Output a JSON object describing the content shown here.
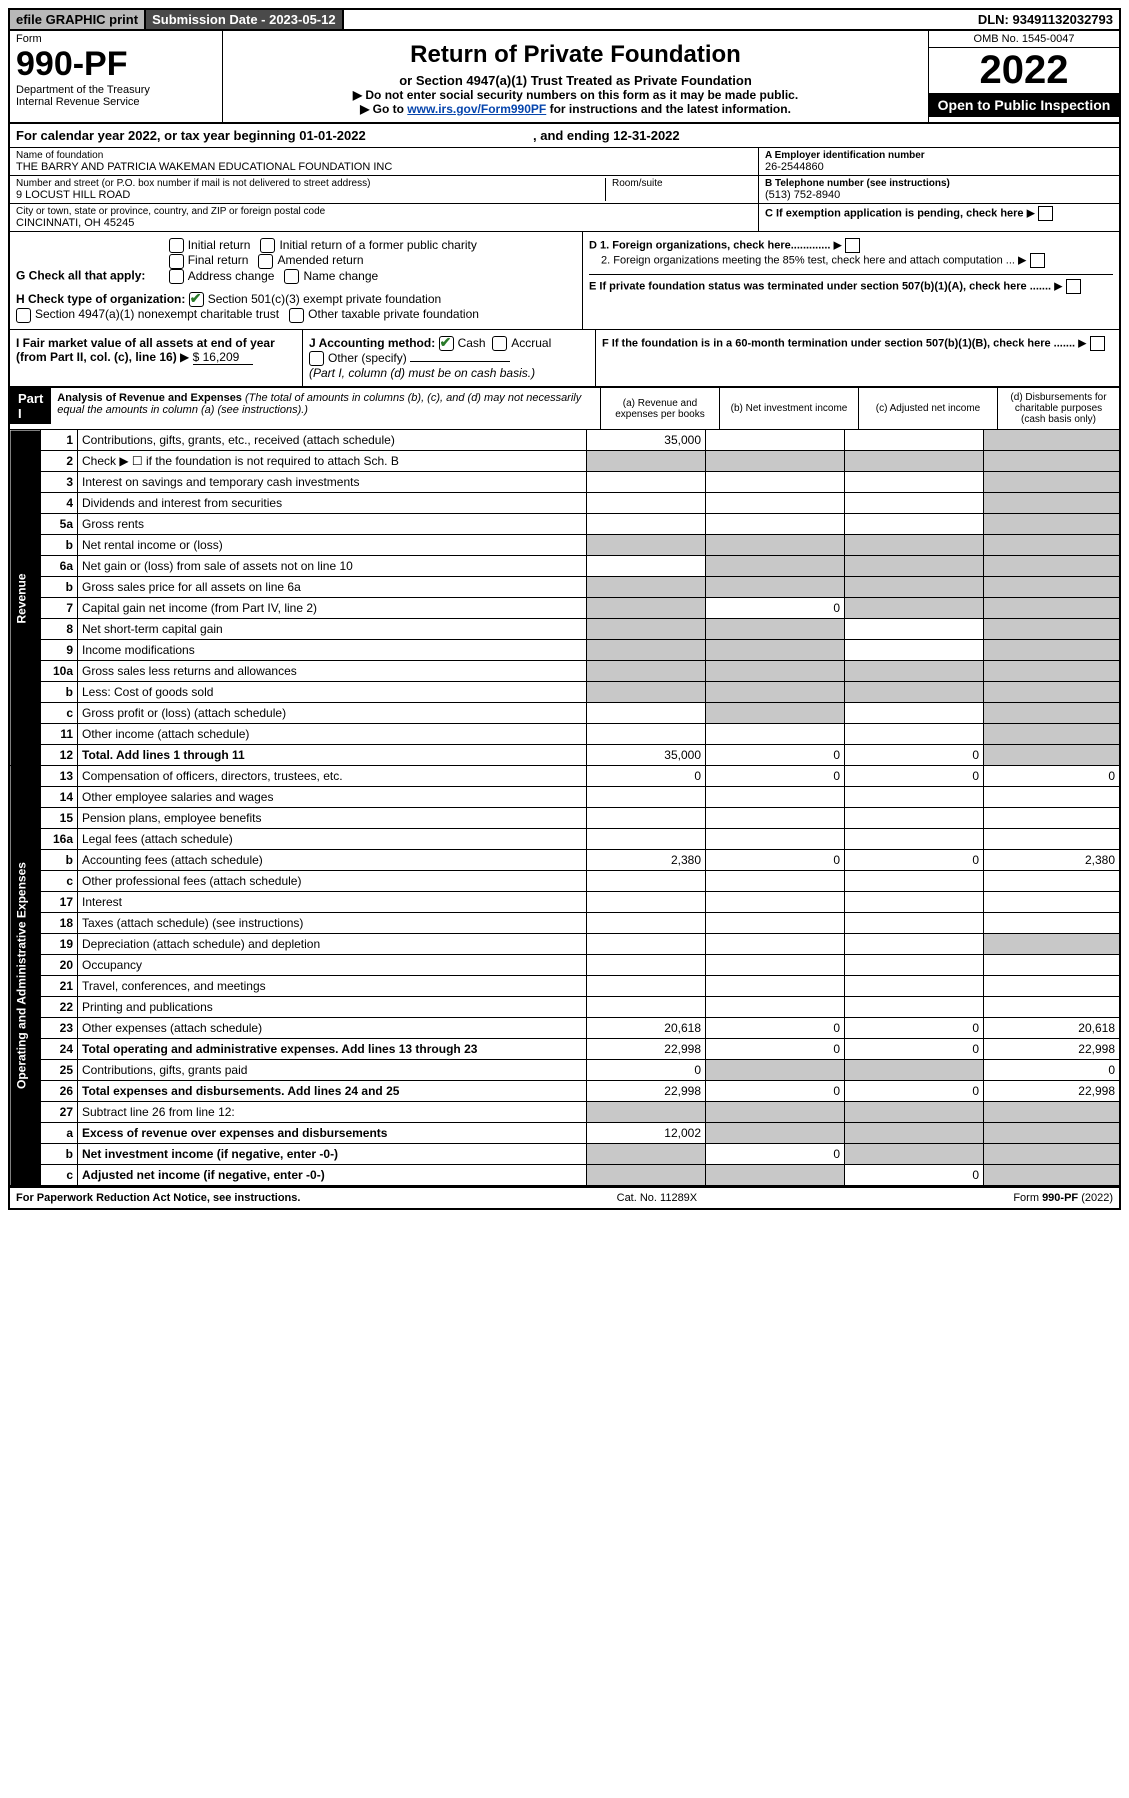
{
  "topbar": {
    "efile": "efile GRAPHIC print",
    "subdate_label": "Submission Date - 2023-05-12",
    "dln": "DLN: 93491132032793"
  },
  "header": {
    "form_label": "Form",
    "form_no": "990-PF",
    "dept": "Department of the Treasury",
    "irs": "Internal Revenue Service",
    "title": "Return of Private Foundation",
    "subtitle": "or Section 4947(a)(1) Trust Treated as Private Foundation",
    "note1": "▶ Do not enter social security numbers on this form as it may be made public.",
    "note2_pre": "▶ Go to ",
    "note2_link": "www.irs.gov/Form990PF",
    "note2_post": " for instructions and the latest information.",
    "omb": "OMB No. 1545-0047",
    "year": "2022",
    "open": "Open to Public Inspection"
  },
  "calrow": {
    "pre": "For calendar year 2022, or tax year beginning 01-01-2022",
    "post": ", and ending 12-31-2022"
  },
  "info": {
    "name_lbl": "Name of foundation",
    "name": "THE BARRY AND PATRICIA WAKEMAN EDUCATIONAL FOUNDATION INC",
    "addr_lbl": "Number and street (or P.O. box number if mail is not delivered to street address)",
    "addr": "9 LOCUST HILL ROAD",
    "room_lbl": "Room/suite",
    "city_lbl": "City or town, state or province, country, and ZIP or foreign postal code",
    "city": "CINCINNATI, OH  45245",
    "ein_lbl": "A Employer identification number",
    "ein": "26-2544860",
    "tel_lbl": "B Telephone number (see instructions)",
    "tel": "(513) 752-8940",
    "c_lbl": "C If exemption application is pending, check here",
    "d1": "D 1. Foreign organizations, check here.............",
    "d2": "2. Foreign organizations meeting the 85% test, check here and attach computation ...",
    "e": "E  If private foundation status was terminated under section 507(b)(1)(A), check here .......",
    "f": "F  If the foundation is in a 60-month termination under section 507(b)(1)(B), check here ......."
  },
  "g": {
    "label": "G Check all that apply:",
    "opts": [
      "Initial return",
      "Final return",
      "Address change",
      "Initial return of a former public charity",
      "Amended return",
      "Name change"
    ]
  },
  "h": {
    "label": "H Check type of organization:",
    "opt1": "Section 501(c)(3) exempt private foundation",
    "opt2": "Section 4947(a)(1) nonexempt charitable trust",
    "opt3": "Other taxable private foundation"
  },
  "i": {
    "label": "I Fair market value of all assets at end of year (from Part II, col. (c), line 16)",
    "val": "$  16,209"
  },
  "j": {
    "label": "J Accounting method:",
    "cash": "Cash",
    "accrual": "Accrual",
    "other": "Other (specify)",
    "note": "(Part I, column (d) must be on cash basis.)"
  },
  "part1": {
    "tag": "Part I",
    "title": "Analysis of Revenue and Expenses",
    "sub": " (The total of amounts in columns (b), (c), and (d) may not necessarily equal the amounts in column (a) (see instructions).)",
    "colA": "(a)  Revenue and expenses per books",
    "colB": "(b)  Net investment income",
    "colC": "(c)  Adjusted net income",
    "colD": "(d)  Disbursements for charitable purposes (cash basis only)"
  },
  "side": {
    "rev": "Revenue",
    "exp": "Operating and Administrative Expenses"
  },
  "rows": [
    {
      "n": "1",
      "d": "Contributions, gifts, grants, etc., received (attach schedule)",
      "a": "35,000",
      "b": "",
      "c": "",
      "dd": "",
      "gb": false,
      "gc": false,
      "gd": true
    },
    {
      "n": "2",
      "d": "Check ▶ ☐ if the foundation is not required to attach Sch. B",
      "a": "",
      "b": "",
      "c": "",
      "dd": "",
      "gb": true,
      "gc": true,
      "gd": true,
      "ga": true
    },
    {
      "n": "3",
      "d": "Interest on savings and temporary cash investments",
      "a": "",
      "b": "",
      "c": "",
      "dd": "",
      "gd": true
    },
    {
      "n": "4",
      "d": "Dividends and interest from securities",
      "a": "",
      "b": "",
      "c": "",
      "dd": "",
      "gd": true
    },
    {
      "n": "5a",
      "d": "Gross rents",
      "a": "",
      "b": "",
      "c": "",
      "dd": "",
      "gd": true
    },
    {
      "n": "b",
      "d": "Net rental income or (loss)",
      "a": "",
      "b": "",
      "c": "",
      "dd": "",
      "ga": true,
      "gb": true,
      "gc": true,
      "gd": true
    },
    {
      "n": "6a",
      "d": "Net gain or (loss) from sale of assets not on line 10",
      "a": "",
      "b": "",
      "c": "",
      "dd": "",
      "gb": true,
      "gc": true,
      "gd": true
    },
    {
      "n": "b",
      "d": "Gross sales price for all assets on line 6a",
      "a": "",
      "b": "",
      "c": "",
      "dd": "",
      "ga": true,
      "gb": true,
      "gc": true,
      "gd": true
    },
    {
      "n": "7",
      "d": "Capital gain net income (from Part IV, line 2)",
      "a": "",
      "b": "0",
      "c": "",
      "dd": "",
      "ga": true,
      "gc": true,
      "gd": true
    },
    {
      "n": "8",
      "d": "Net short-term capital gain",
      "a": "",
      "b": "",
      "c": "",
      "dd": "",
      "ga": true,
      "gb": true,
      "gd": true
    },
    {
      "n": "9",
      "d": "Income modifications",
      "a": "",
      "b": "",
      "c": "",
      "dd": "",
      "ga": true,
      "gb": true,
      "gd": true
    },
    {
      "n": "10a",
      "d": "Gross sales less returns and allowances",
      "a": "",
      "b": "",
      "c": "",
      "dd": "",
      "ga": true,
      "gb": true,
      "gc": true,
      "gd": true
    },
    {
      "n": "b",
      "d": "Less: Cost of goods sold",
      "a": "",
      "b": "",
      "c": "",
      "dd": "",
      "ga": true,
      "gb": true,
      "gc": true,
      "gd": true
    },
    {
      "n": "c",
      "d": "Gross profit or (loss) (attach schedule)",
      "a": "",
      "b": "",
      "c": "",
      "dd": "",
      "gb": true,
      "gd": true
    },
    {
      "n": "11",
      "d": "Other income (attach schedule)",
      "a": "",
      "b": "",
      "c": "",
      "dd": "",
      "gd": true
    },
    {
      "n": "12",
      "d": "Total. Add lines 1 through 11",
      "a": "35,000",
      "b": "0",
      "c": "0",
      "dd": "",
      "bold": true,
      "gd": true
    },
    {
      "n": "13",
      "d": "Compensation of officers, directors, trustees, etc.",
      "a": "0",
      "b": "0",
      "c": "0",
      "dd": "0"
    },
    {
      "n": "14",
      "d": "Other employee salaries and wages",
      "a": "",
      "b": "",
      "c": "",
      "dd": ""
    },
    {
      "n": "15",
      "d": "Pension plans, employee benefits",
      "a": "",
      "b": "",
      "c": "",
      "dd": ""
    },
    {
      "n": "16a",
      "d": "Legal fees (attach schedule)",
      "a": "",
      "b": "",
      "c": "",
      "dd": ""
    },
    {
      "n": "b",
      "d": "Accounting fees (attach schedule)",
      "a": "2,380",
      "b": "0",
      "c": "0",
      "dd": "2,380"
    },
    {
      "n": "c",
      "d": "Other professional fees (attach schedule)",
      "a": "",
      "b": "",
      "c": "",
      "dd": ""
    },
    {
      "n": "17",
      "d": "Interest",
      "a": "",
      "b": "",
      "c": "",
      "dd": ""
    },
    {
      "n": "18",
      "d": "Taxes (attach schedule) (see instructions)",
      "a": "",
      "b": "",
      "c": "",
      "dd": ""
    },
    {
      "n": "19",
      "d": "Depreciation (attach schedule) and depletion",
      "a": "",
      "b": "",
      "c": "",
      "dd": "",
      "gd": true
    },
    {
      "n": "20",
      "d": "Occupancy",
      "a": "",
      "b": "",
      "c": "",
      "dd": ""
    },
    {
      "n": "21",
      "d": "Travel, conferences, and meetings",
      "a": "",
      "b": "",
      "c": "",
      "dd": ""
    },
    {
      "n": "22",
      "d": "Printing and publications",
      "a": "",
      "b": "",
      "c": "",
      "dd": ""
    },
    {
      "n": "23",
      "d": "Other expenses (attach schedule)",
      "a": "20,618",
      "b": "0",
      "c": "0",
      "dd": "20,618"
    },
    {
      "n": "24",
      "d": "Total operating and administrative expenses. Add lines 13 through 23",
      "a": "22,998",
      "b": "0",
      "c": "0",
      "dd": "22,998",
      "bold": true
    },
    {
      "n": "25",
      "d": "Contributions, gifts, grants paid",
      "a": "0",
      "b": "",
      "c": "",
      "dd": "0",
      "gb": true,
      "gc": true
    },
    {
      "n": "26",
      "d": "Total expenses and disbursements. Add lines 24 and 25",
      "a": "22,998",
      "b": "0",
      "c": "0",
      "dd": "22,998",
      "bold": true
    },
    {
      "n": "27",
      "d": "Subtract line 26 from line 12:",
      "a": "",
      "b": "",
      "c": "",
      "dd": "",
      "ga": true,
      "gb": true,
      "gc": true,
      "gd": true
    },
    {
      "n": "a",
      "d": "Excess of revenue over expenses and disbursements",
      "a": "12,002",
      "b": "",
      "c": "",
      "dd": "",
      "bold": true,
      "gb": true,
      "gc": true,
      "gd": true
    },
    {
      "n": "b",
      "d": "Net investment income (if negative, enter -0-)",
      "a": "",
      "b": "0",
      "c": "",
      "dd": "",
      "bold": true,
      "ga": true,
      "gc": true,
      "gd": true
    },
    {
      "n": "c",
      "d": "Adjusted net income (if negative, enter -0-)",
      "a": "",
      "b": "",
      "c": "0",
      "dd": "",
      "bold": true,
      "ga": true,
      "gb": true,
      "gd": true
    }
  ],
  "foot": {
    "left": "For Paperwork Reduction Act Notice, see instructions.",
    "mid": "Cat. No. 11289X",
    "right": "Form 990-PF (2022)"
  }
}
